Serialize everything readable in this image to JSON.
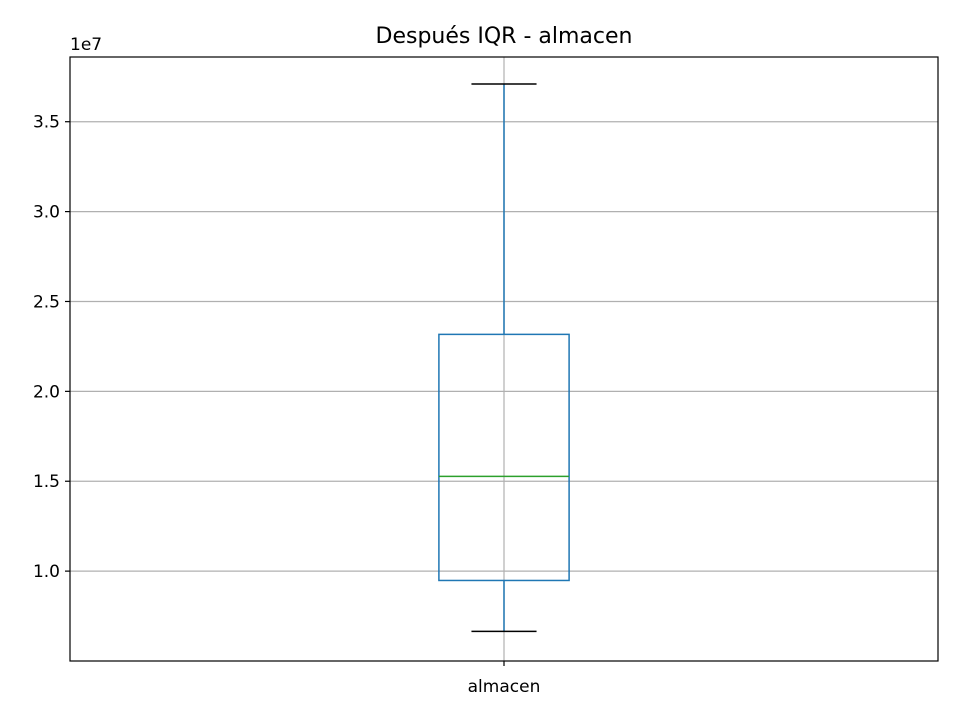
{
  "chart_data": {
    "type": "box",
    "title": "Después IQR - almacen",
    "categories": [
      "almacen"
    ],
    "boxes": [
      {
        "name": "almacen",
        "whisker_low": 6650000,
        "q1": 9480000,
        "median": 15270000,
        "q3": 23170000,
        "whisker_high": 37100000
      }
    ],
    "y_ticks": [
      10000000,
      15000000,
      20000000,
      25000000,
      30000000,
      35000000
    ],
    "y_tick_labels": [
      "1.0",
      "1.5",
      "2.0",
      "2.5",
      "3.0",
      "3.5"
    ],
    "y_offset_label": "1e7",
    "ylim": [
      5000000,
      38600000
    ],
    "grid": true,
    "colors": {
      "box": "#1f77b4",
      "median": "#2ca02c",
      "caps": "#000000",
      "grid": "#b0b0b0",
      "axes": "#000000"
    }
  }
}
